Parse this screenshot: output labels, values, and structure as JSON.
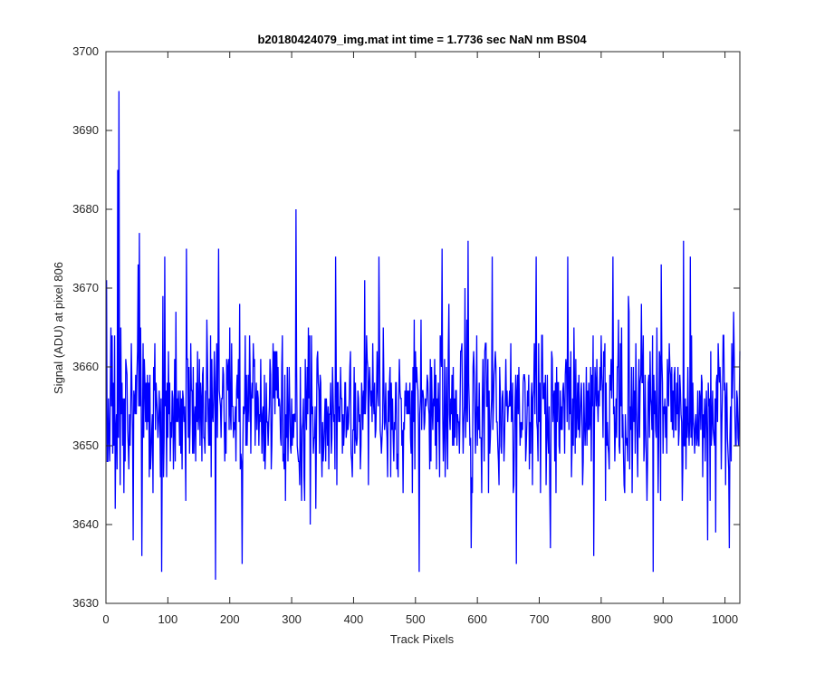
{
  "chart_data": {
    "type": "line",
    "title": "b20180424079_img.mat int time = 1.7736 sec  NaN nm BS04",
    "xlabel": "Track Pixels",
    "ylabel": "Signal (ADU) at pixel 806",
    "xlim": [
      0,
      1024
    ],
    "ylim": [
      3630,
      3700
    ],
    "xticks": [
      0,
      100,
      200,
      300,
      400,
      500,
      600,
      700,
      800,
      900,
      1000
    ],
    "yticks": [
      3630,
      3640,
      3650,
      3660,
      3670,
      3680,
      3690,
      3700
    ],
    "grid": false,
    "line_color": "#0000ff",
    "series": [
      {
        "x_start": 1,
        "x_step": 1,
        "count": 1024,
        "mean": 3654.5,
        "std": 5.2,
        "values_min": 3633,
        "values_max": 3695,
        "notable_points": [
          {
            "x": 15,
            "y": 3642
          },
          {
            "x": 19,
            "y": 3685
          },
          {
            "x": 21,
            "y": 3695
          },
          {
            "x": 44,
            "y": 3638
          },
          {
            "x": 52,
            "y": 3673
          },
          {
            "x": 54,
            "y": 3677
          },
          {
            "x": 58,
            "y": 3636
          },
          {
            "x": 90,
            "y": 3634
          },
          {
            "x": 95,
            "y": 3674
          },
          {
            "x": 130,
            "y": 3675
          },
          {
            "x": 177,
            "y": 3633
          },
          {
            "x": 182,
            "y": 3675
          },
          {
            "x": 220,
            "y": 3635
          },
          {
            "x": 307,
            "y": 3680
          },
          {
            "x": 330,
            "y": 3640
          },
          {
            "x": 371,
            "y": 3674
          },
          {
            "x": 441,
            "y": 3674
          },
          {
            "x": 506,
            "y": 3634
          },
          {
            "x": 543,
            "y": 3675
          },
          {
            "x": 585,
            "y": 3676
          },
          {
            "x": 590,
            "y": 3637
          },
          {
            "x": 624,
            "y": 3674
          },
          {
            "x": 663,
            "y": 3635
          },
          {
            "x": 695,
            "y": 3674
          },
          {
            "x": 718,
            "y": 3637
          },
          {
            "x": 746,
            "y": 3674
          },
          {
            "x": 788,
            "y": 3636
          },
          {
            "x": 819,
            "y": 3674
          },
          {
            "x": 884,
            "y": 3634
          },
          {
            "x": 897,
            "y": 3673
          },
          {
            "x": 933,
            "y": 3676
          },
          {
            "x": 944,
            "y": 3674
          },
          {
            "x": 972,
            "y": 3638
          },
          {
            "x": 985,
            "y": 3639
          },
          {
            "x": 1007,
            "y": 3637
          }
        ]
      }
    ]
  }
}
